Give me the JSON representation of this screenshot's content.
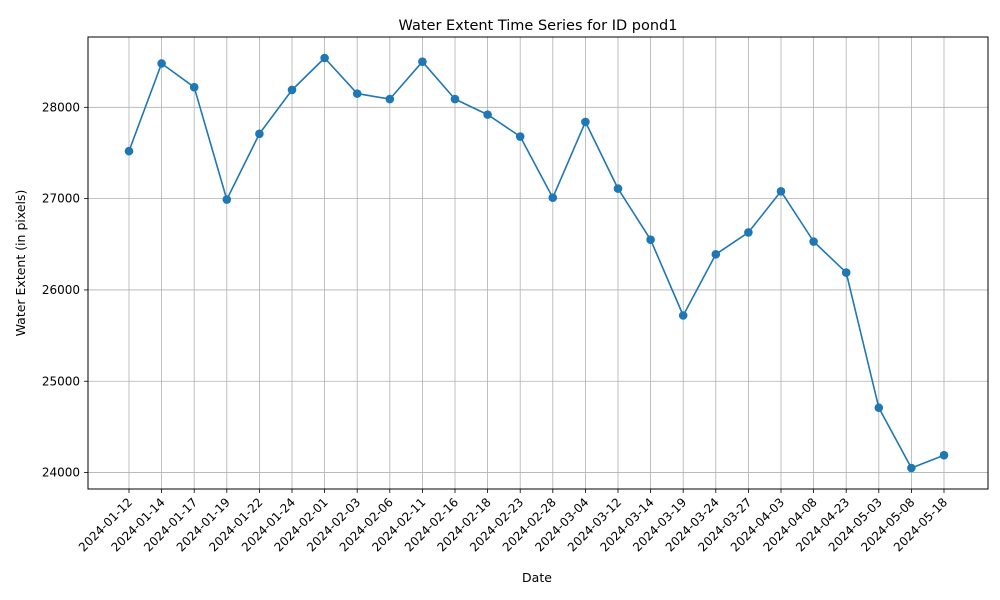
{
  "chart_data": {
    "type": "line",
    "title": "Water Extent Time Series for ID pond1",
    "xlabel": "Date",
    "ylabel": "Water Extent (in pixels)",
    "categories": [
      "2024-01-12",
      "2024-01-14",
      "2024-01-17",
      "2024-01-19",
      "2024-01-22",
      "2024-01-24",
      "2024-02-01",
      "2024-02-03",
      "2024-02-06",
      "2024-02-11",
      "2024-02-16",
      "2024-02-18",
      "2024-02-23",
      "2024-02-28",
      "2024-03-04",
      "2024-03-12",
      "2024-03-14",
      "2024-03-19",
      "2024-03-24",
      "2024-03-27",
      "2024-04-03",
      "2024-04-08",
      "2024-04-23",
      "2024-05-03",
      "2024-05-08",
      "2024-05-18"
    ],
    "values": [
      27520,
      28480,
      28220,
      26990,
      27710,
      28190,
      28540,
      28150,
      28090,
      28500,
      28090,
      27920,
      27680,
      27010,
      27840,
      27110,
      26550,
      25720,
      26390,
      26630,
      27080,
      26530,
      26190,
      24710,
      24050,
      24190
    ],
    "yticks": [
      24000,
      25000,
      26000,
      27000,
      28000
    ],
    "ylim": [
      23820,
      28770
    ],
    "grid": true,
    "marker": "circle",
    "colors": {
      "line": "#1f77b4",
      "grid": "#b0b0b0",
      "axis": "#000000"
    }
  }
}
